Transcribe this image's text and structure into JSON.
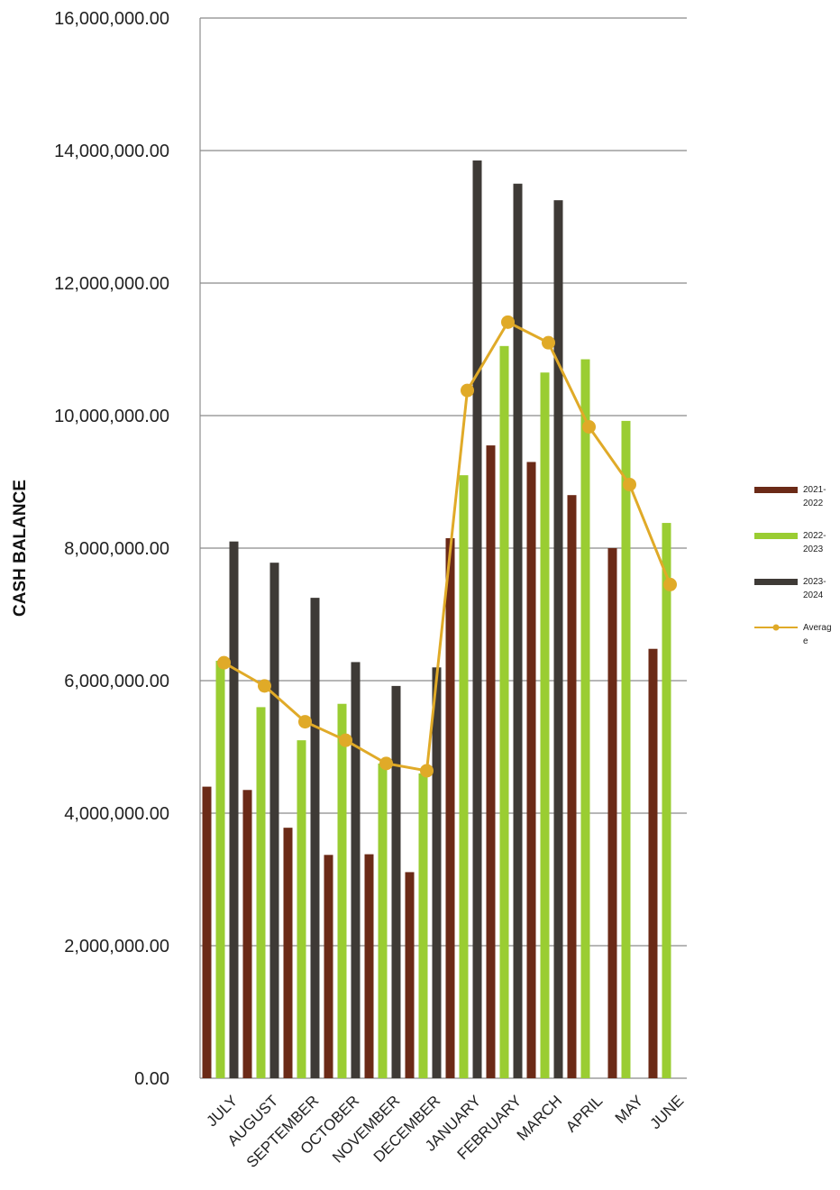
{
  "chart_data": {
    "type": "bar",
    "title": "",
    "xlabel": "",
    "ylabel": "CASH BALANCE",
    "ylim": [
      0,
      16000000
    ],
    "yticks": [
      0,
      2000000,
      4000000,
      6000000,
      8000000,
      10000000,
      12000000,
      14000000,
      16000000
    ],
    "ytick_labels": [
      "0.00",
      "2,000,000.00",
      "4,000,000.00",
      "6,000,000.00",
      "8,000,000.00",
      "10,000,000.00",
      "12,000,000.00",
      "14,000,000.00",
      "16,000,000.00"
    ],
    "grid": true,
    "legend_position": "right",
    "categories": [
      "JULY",
      "AUGUST",
      "SEPTEMBER",
      "OCTOBER",
      "NOVEMBER",
      "DECEMBER",
      "JANUARY",
      "FEBRUARY",
      "MARCH",
      "APRIL",
      "MAY",
      "JUNE"
    ],
    "series": [
      {
        "name": "2021-2022",
        "legend_lines": [
          "2021-",
          "2022"
        ],
        "type": "bar",
        "color": "#6b2a17",
        "values": [
          4400000,
          4350000,
          3780000,
          3370000,
          3380000,
          3110000,
          8150000,
          9550000,
          9300000,
          8800000,
          8000000,
          6480000
        ]
      },
      {
        "name": "2022-2023",
        "legend_lines": [
          "2022-",
          "2023"
        ],
        "type": "bar",
        "color": "#9acd32",
        "values": [
          6300000,
          5600000,
          5100000,
          5650000,
          4750000,
          4600000,
          9100000,
          11050000,
          10650000,
          10850000,
          9920000,
          8380000
        ]
      },
      {
        "name": "2023-2024",
        "legend_lines": [
          "2023-",
          "2024"
        ],
        "type": "bar",
        "color": "#3e3a36",
        "values": [
          8100000,
          7780000,
          7250000,
          6280000,
          5920000,
          6200000,
          13850000,
          13500000,
          13250000,
          null,
          null,
          null
        ]
      },
      {
        "name": "Average",
        "legend_lines": [
          "Averag",
          "e"
        ],
        "type": "line",
        "color": "#e0aa28",
        "values": [
          6270000,
          5920000,
          5380000,
          5100000,
          4750000,
          4640000,
          10380000,
          11410000,
          11100000,
          9830000,
          8960000,
          7450000
        ]
      }
    ]
  }
}
